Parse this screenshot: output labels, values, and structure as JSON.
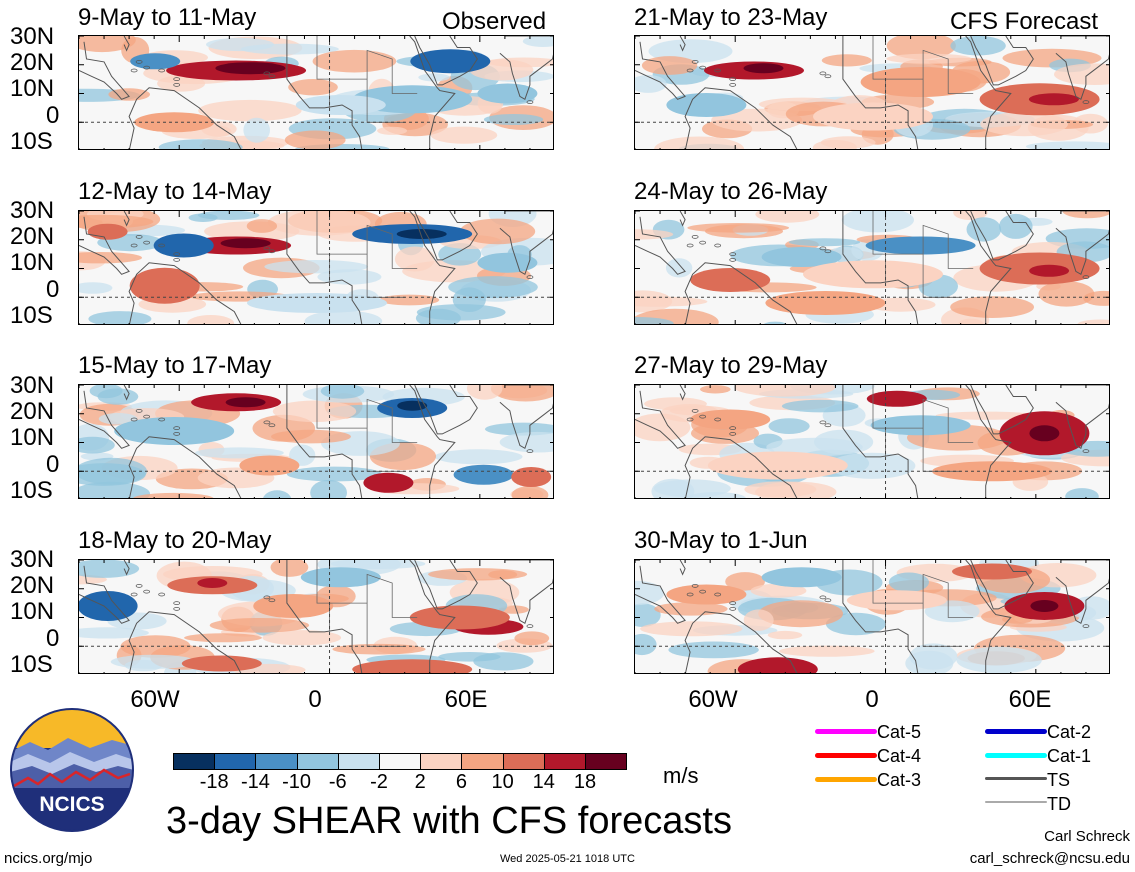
{
  "panels": [
    {
      "title": "9-May to 11-May",
      "tag": "Observed"
    },
    {
      "title": "12-May to 14-May",
      "tag": ""
    },
    {
      "title": "15-May to 17-May",
      "tag": ""
    },
    {
      "title": "18-May to 20-May",
      "tag": ""
    },
    {
      "title": "21-May to 23-May",
      "tag": "CFS Forecast"
    },
    {
      "title": "24-May to 26-May",
      "tag": ""
    },
    {
      "title": "27-May to 29-May",
      "tag": ""
    },
    {
      "title": "30-May to 1-Jun",
      "tag": ""
    }
  ],
  "lat_labels": [
    "30N",
    "20N",
    "10N",
    "0",
    "10S"
  ],
  "lon_labels": [
    "60W",
    "0",
    "60E"
  ],
  "colorbar": {
    "colors": [
      "#07305f",
      "#2166ac",
      "#4a90c5",
      "#92c5de",
      "#c9e1ef",
      "#f7f7f7",
      "#fbd3c2",
      "#f4a582",
      "#dc6d57",
      "#b2182b",
      "#67001f"
    ],
    "ticks": [
      "-18",
      "-14",
      "-10",
      "-6",
      "-2",
      "2",
      "6",
      "10",
      "14",
      "18"
    ],
    "unit": "m/s"
  },
  "legend": [
    {
      "label": "Cat-5",
      "color": "#ff00ff"
    },
    {
      "label": "Cat-4",
      "color": "#ff0000"
    },
    {
      "label": "Cat-3",
      "color": "#ffa500"
    },
    {
      "label": "Cat-2",
      "color": "#0000cc"
    },
    {
      "label": "Cat-1",
      "color": "#00ffff"
    },
    {
      "label": "TS",
      "color": "#555555"
    },
    {
      "label": "TD",
      "color": "#aaaaaa"
    }
  ],
  "logo_text": "NCICS",
  "main_title": "3-day SHEAR with CFS forecasts",
  "footer_left": "ncics.org/mjo",
  "timestamp": "Wed 2025-05-21 1018 UTC",
  "author": "Carl Schreck",
  "email": "carl_schreck@ncsu.edu"
}
